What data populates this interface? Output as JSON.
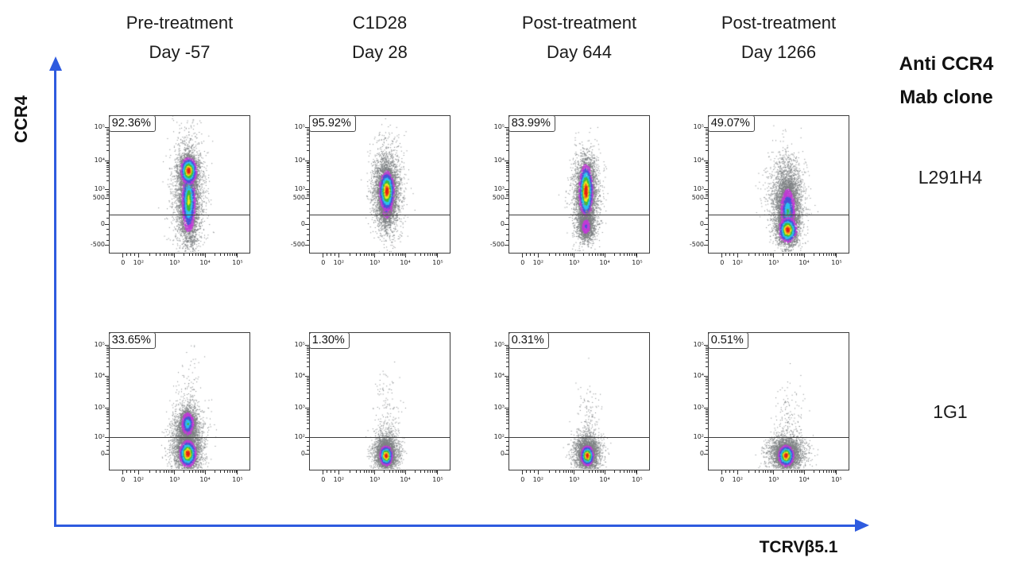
{
  "figure": {
    "column_headers": [
      {
        "line1": "Pre-treatment",
        "line2": "Day -57"
      },
      {
        "line1": "C1D28",
        "line2": "Day 28"
      },
      {
        "line1": "Post-treatment",
        "line2": "Day 644"
      },
      {
        "line1": "Post-treatment",
        "line2": "Day 1266"
      }
    ],
    "right_header": {
      "line1": "Anti CCR4",
      "line2": "Mab clone"
    },
    "row_labels": [
      "L291H4",
      "1G1"
    ],
    "y_axis_label": "CCR4",
    "x_axis_label": "TCRVβ5.1",
    "arrow_color": "#2e5bdf"
  },
  "chart_data": {
    "type": "scatter",
    "subtype": "flow-cytometry-pseudocolor-density",
    "x_axis": "TCRVβ5.1",
    "y_axis": "CCR4",
    "x_ticks": [
      {
        "label": "0",
        "f": 0.1
      },
      {
        "label": "10²",
        "f": 0.21
      },
      {
        "label": "10³",
        "f": 0.465
      },
      {
        "label": "10⁴",
        "f": 0.68
      },
      {
        "label": "10⁵",
        "f": 0.91
      }
    ],
    "y_ticks_top_row": [
      {
        "label": "10⁵",
        "f": 0.09
      },
      {
        "label": "10⁴",
        "f": 0.33
      },
      {
        "label": "10³",
        "f": 0.54
      },
      {
        "label": "500",
        "f": 0.6
      },
      {
        "label": "0",
        "f": 0.79
      },
      {
        "label": "-500",
        "f": 0.94
      }
    ],
    "y_ticks_bottom_row": [
      {
        "label": "10⁵",
        "f": 0.095
      },
      {
        "label": "10⁴",
        "f": 0.32
      },
      {
        "label": "10³",
        "f": 0.55
      },
      {
        "label": "10²",
        "f": 0.76
      },
      {
        "label": "0",
        "f": 0.885
      }
    ],
    "density_colormap_low_to_high": [
      "#7d8083",
      "#c139d6",
      "#4653d8",
      "#2cc3ed",
      "#3ebc3c",
      "#f2e81f",
      "#f1741c",
      "#e81e14"
    ],
    "blob_format": [
      "cx_fraction",
      "cy_fraction",
      "sigma_x",
      "sigma_y",
      "n_points",
      "color_offset"
    ],
    "panels": [
      {
        "row": 0,
        "col": 0,
        "timepoint": "Pre-treatment Day -57",
        "clone": "L291H4",
        "percent_gated": "92.36%",
        "gate_y_fraction": 0.71,
        "blobs": [
          [
            0.565,
            0.57,
            0.058,
            0.2,
            2400,
            1
          ],
          [
            0.565,
            0.62,
            0.028,
            0.13,
            2400,
            0.18
          ],
          [
            0.565,
            0.4,
            0.03,
            0.05,
            1600,
            0
          ]
        ]
      },
      {
        "row": 0,
        "col": 1,
        "timepoint": "C1D28 Day 28",
        "clone": "L291H4",
        "percent_gated": "95.92%",
        "gate_y_fraction": 0.71,
        "blobs": [
          [
            0.55,
            0.55,
            0.052,
            0.165,
            2400,
            1
          ],
          [
            0.55,
            0.6,
            0.026,
            0.09,
            1600,
            0.25
          ],
          [
            0.55,
            0.55,
            0.028,
            0.075,
            1800,
            0
          ]
        ]
      },
      {
        "row": 0,
        "col": 2,
        "timepoint": "Post-treatment Day 644",
        "clone": "L291H4",
        "percent_gated": "83.99%",
        "gate_y_fraction": 0.71,
        "blobs": [
          [
            0.55,
            0.58,
            0.048,
            0.16,
            2400,
            1
          ],
          [
            0.548,
            0.55,
            0.026,
            0.1,
            2200,
            0
          ],
          [
            0.548,
            0.81,
            0.028,
            0.05,
            800,
            0.5
          ]
        ]
      },
      {
        "row": 0,
        "col": 3,
        "timepoint": "Post-treatment Day 1266",
        "clone": "L291H4",
        "percent_gated": "49.07%",
        "gate_y_fraction": 0.71,
        "blobs": [
          [
            0.56,
            0.62,
            0.062,
            0.165,
            2600,
            1
          ],
          [
            0.565,
            0.7,
            0.033,
            0.105,
            2000,
            0.3
          ],
          [
            0.565,
            0.835,
            0.033,
            0.048,
            1400,
            0
          ]
        ]
      },
      {
        "row": 1,
        "col": 0,
        "timepoint": "Pre-treatment Day -57",
        "clone": "1G1",
        "percent_gated": "33.65%",
        "gate_y_fraction": 0.75,
        "blobs": [
          [
            0.558,
            0.8,
            0.058,
            0.125,
            2600,
            1
          ],
          [
            0.558,
            0.665,
            0.028,
            0.052,
            1300,
            0.3
          ],
          [
            0.558,
            0.885,
            0.031,
            0.05,
            1800,
            0
          ],
          [
            0.56,
            0.45,
            0.05,
            0.16,
            110,
            1
          ]
        ]
      },
      {
        "row": 1,
        "col": 1,
        "timepoint": "C1D28 Day 28",
        "clone": "1G1",
        "percent_gated": "1.30%",
        "gate_y_fraction": 0.75,
        "blobs": [
          [
            0.545,
            0.875,
            0.044,
            0.072,
            2300,
            1
          ],
          [
            0.545,
            0.9,
            0.024,
            0.038,
            1500,
            0
          ],
          [
            0.55,
            0.6,
            0.05,
            0.14,
            140,
            1
          ]
        ]
      },
      {
        "row": 1,
        "col": 2,
        "timepoint": "Post-treatment Day 644",
        "clone": "1G1",
        "percent_gated": "0.31%",
        "gate_y_fraction": 0.75,
        "blobs": [
          [
            0.558,
            0.875,
            0.047,
            0.068,
            2300,
            1
          ],
          [
            0.558,
            0.9,
            0.024,
            0.038,
            1400,
            0
          ],
          [
            0.57,
            0.63,
            0.05,
            0.12,
            120,
            1
          ]
        ]
      },
      {
        "row": 1,
        "col": 3,
        "timepoint": "Post-treatment Day 1266",
        "clone": "1G1",
        "percent_gated": "0.51%",
        "gate_y_fraction": 0.75,
        "blobs": [
          [
            0.558,
            0.88,
            0.062,
            0.062,
            2700,
            1
          ],
          [
            0.553,
            0.9,
            0.029,
            0.04,
            1600,
            0
          ],
          [
            0.58,
            0.64,
            0.055,
            0.125,
            150,
            1
          ]
        ]
      }
    ]
  }
}
